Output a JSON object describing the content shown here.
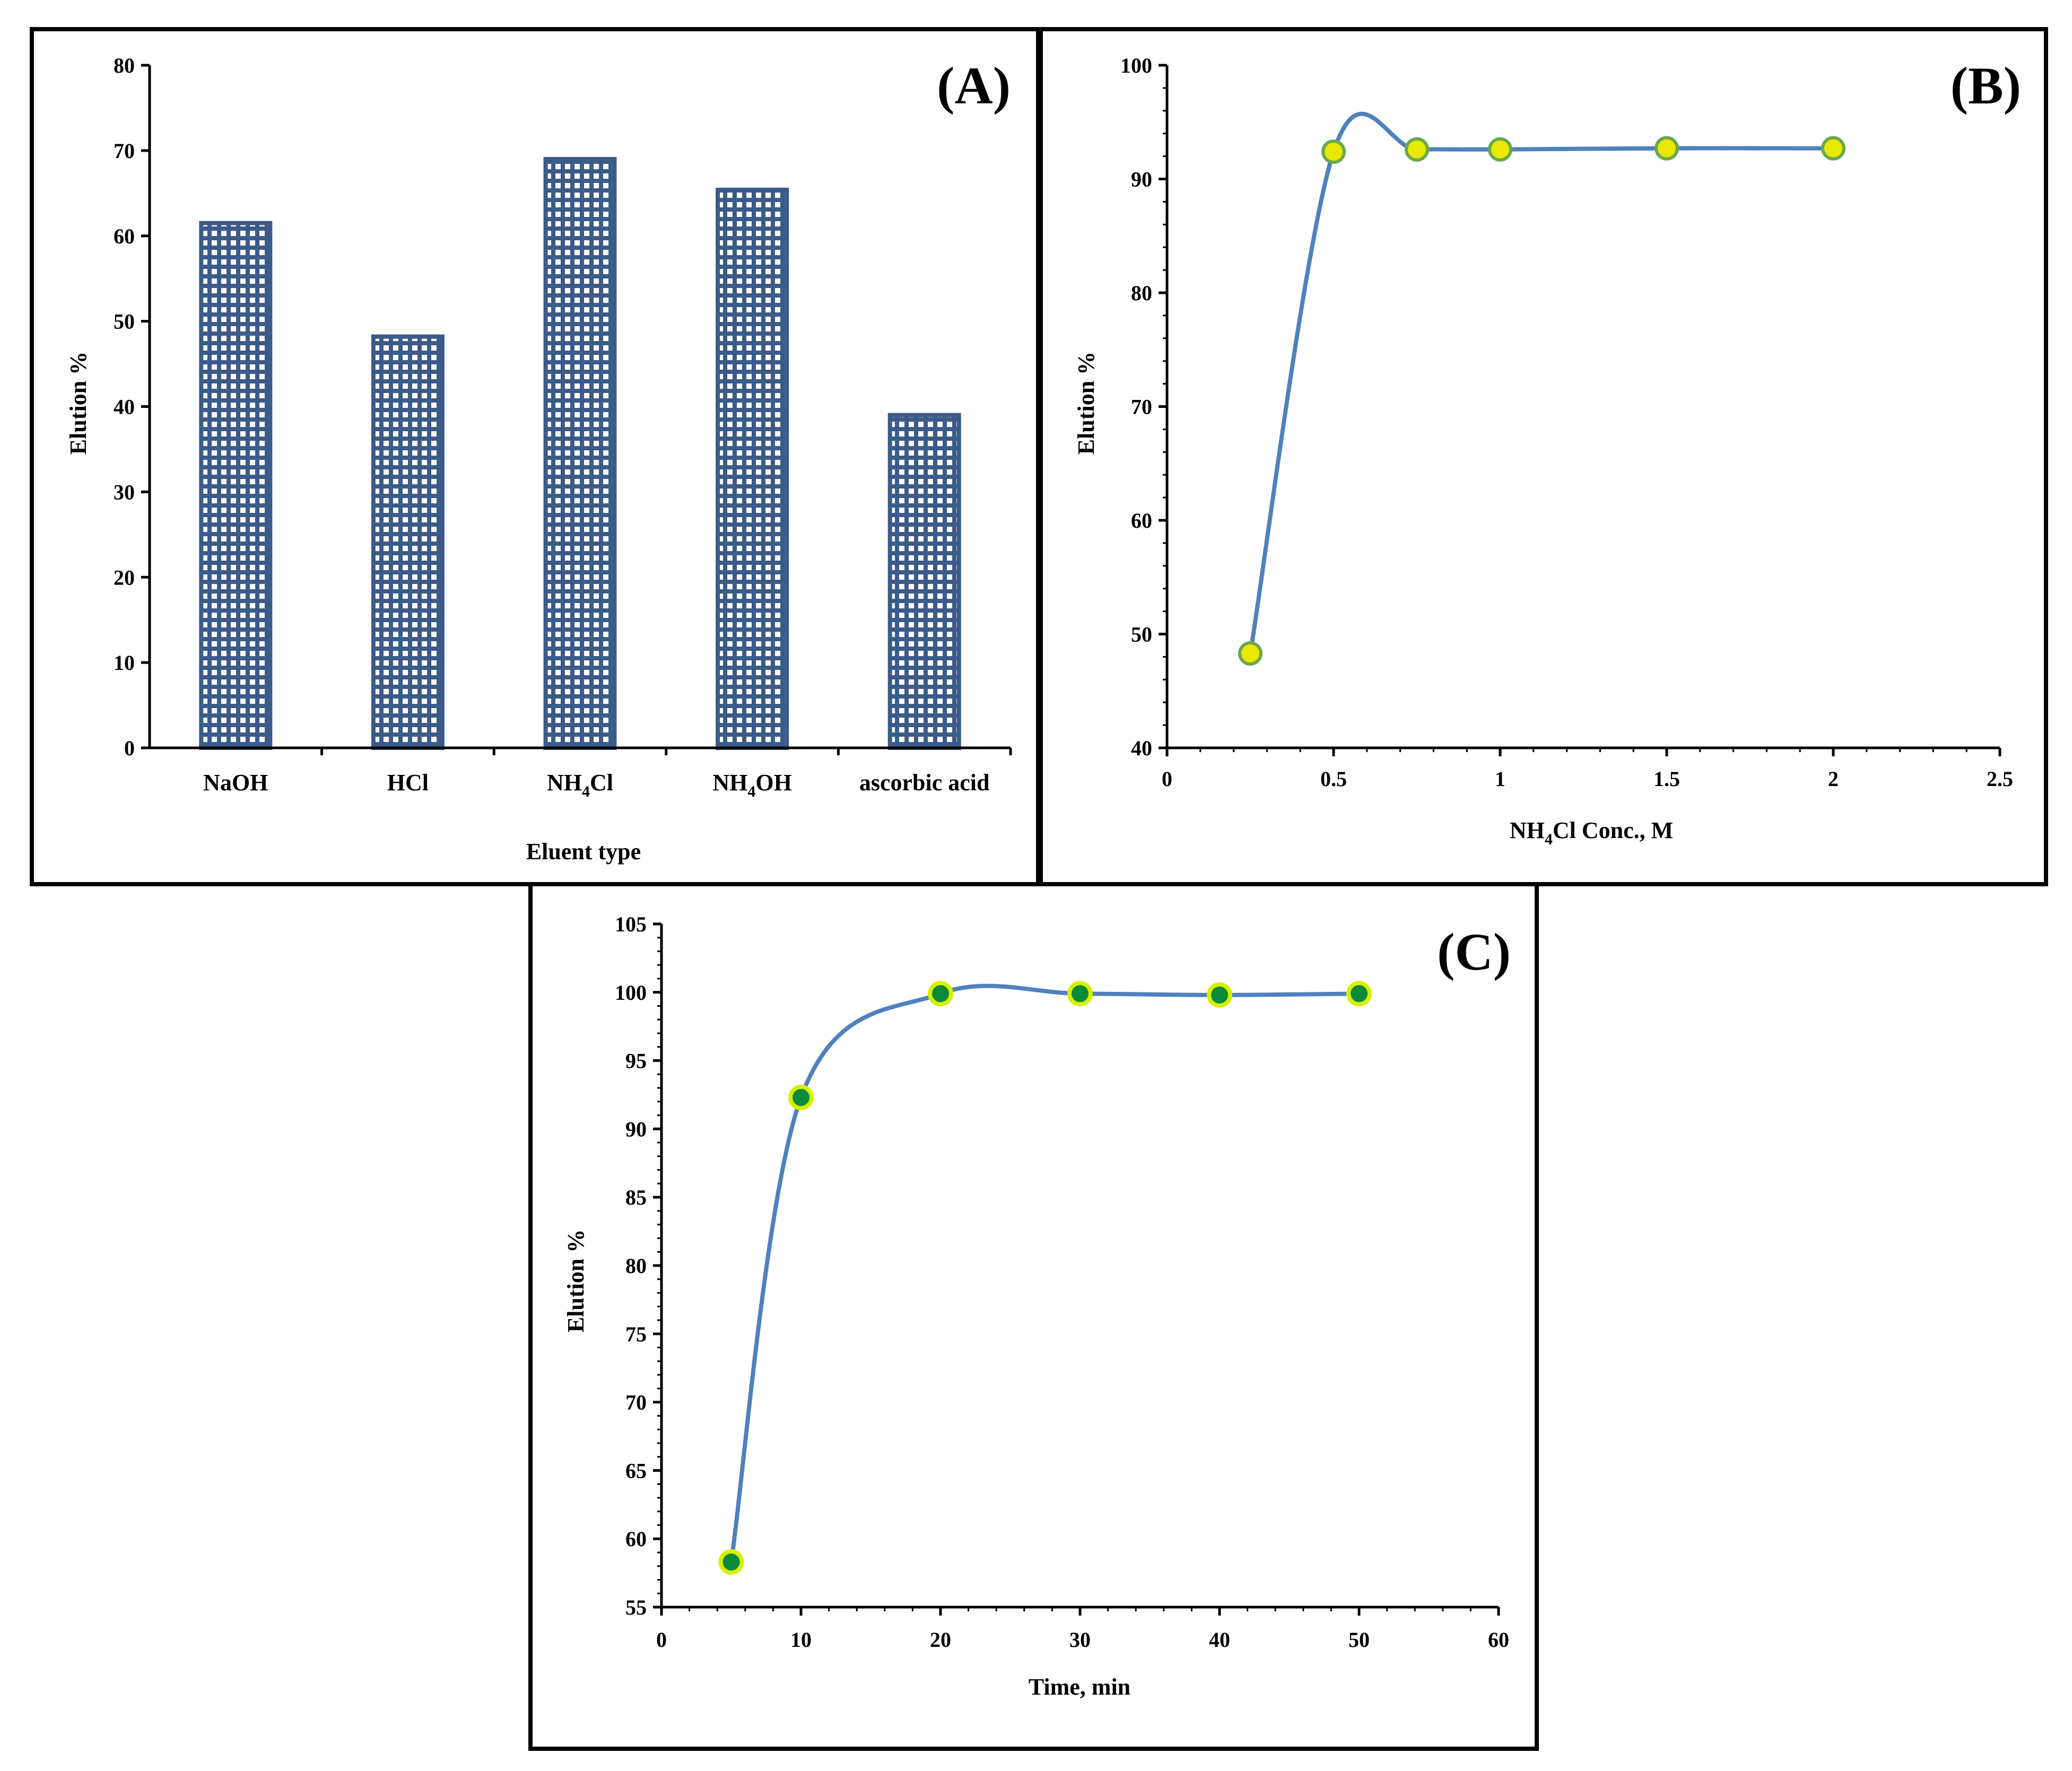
{
  "colors": {
    "bar_fill": "#3b5b88",
    "bar_pattern": "#ffffff",
    "line": "#4f81bd",
    "marker_fill_b": "#e8e800",
    "marker_stroke": "#d8f000",
    "marker_fill_c": "#0a8a3a",
    "frame": "#000000"
  },
  "chart_data": [
    {
      "panel": "A",
      "type": "bar",
      "panel_label": "(A)",
      "xlabel": "Eluent type",
      "ylabel": "Elution %",
      "ylim": [
        0,
        80
      ],
      "yticks": [
        0,
        10,
        20,
        30,
        40,
        50,
        60,
        70,
        80
      ],
      "categories": [
        {
          "main": "NaOH",
          "sub": "",
          "tail": ""
        },
        {
          "main": "HCl",
          "sub": "",
          "tail": ""
        },
        {
          "main": "NH",
          "sub": "4",
          "tail": "Cl"
        },
        {
          "main": "NH",
          "sub": "4",
          "tail": "OH"
        },
        {
          "main": "ascorbic acid",
          "sub": "",
          "tail": ""
        }
      ],
      "values": [
        61.5,
        48.2,
        69.0,
        65.4,
        39.0
      ]
    },
    {
      "panel": "B",
      "type": "line",
      "panel_label": "(B)",
      "xlabel_parts": {
        "main": "NH",
        "sub": "4",
        "tail": "Cl Conc., M"
      },
      "ylabel": "Elution %",
      "xlim": [
        0,
        2.5
      ],
      "ylim": [
        40,
        100
      ],
      "xticks": [
        "0",
        "0.5",
        "1",
        "1.5",
        "2",
        "2.5"
      ],
      "yticks": [
        40,
        50,
        60,
        70,
        80,
        90,
        100
      ],
      "x": [
        0.25,
        0.5,
        0.75,
        1.0,
        1.5,
        2.0
      ],
      "y": [
        48.3,
        92.4,
        92.6,
        92.6,
        92.7,
        92.7
      ]
    },
    {
      "panel": "C",
      "type": "line",
      "panel_label": "(C)",
      "xlabel": "Time, min",
      "ylabel": "Elution %",
      "xlim": [
        0,
        60
      ],
      "ylim": [
        55,
        105
      ],
      "xticks": [
        0,
        10,
        20,
        30,
        40,
        50,
        60
      ],
      "yticks": [
        55,
        60,
        65,
        70,
        75,
        80,
        85,
        90,
        95,
        100,
        105
      ],
      "x": [
        5,
        10,
        20,
        30,
        40,
        50
      ],
      "y": [
        58.3,
        92.3,
        99.9,
        99.9,
        99.8,
        99.9
      ]
    }
  ]
}
